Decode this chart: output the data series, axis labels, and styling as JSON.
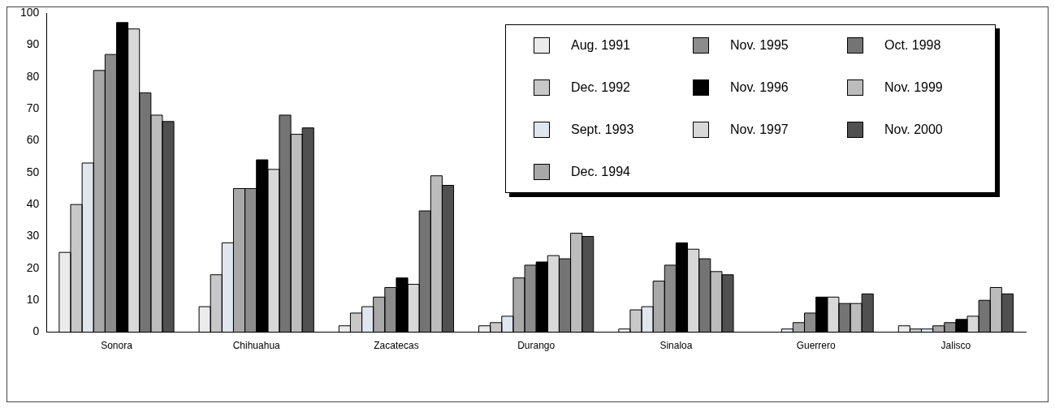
{
  "chart_data": {
    "type": "bar",
    "categories": [
      "Sonora",
      "Chihuahua",
      "Zacatecas",
      "Durango",
      "Sinaloa",
      "Guerrero",
      "Jalisco"
    ],
    "series": [
      {
        "name": "Aug. 1991",
        "color": "#ebebeb",
        "values": [
          25,
          8,
          2,
          2,
          1,
          null,
          2
        ]
      },
      {
        "name": "Dec. 1992",
        "color": "#c8c8c8",
        "values": [
          40,
          18,
          6,
          3,
          7,
          null,
          1
        ]
      },
      {
        "name": "Sept. 1993",
        "color": "#dfe6ee",
        "values": [
          53,
          28,
          8,
          5,
          8,
          1,
          1
        ]
      },
      {
        "name": "Dec. 1994",
        "color": "#a8a8a8",
        "values": [
          82,
          45,
          11,
          17,
          16,
          3,
          2
        ]
      },
      {
        "name": "Nov. 1995",
        "color": "#8c8c8c",
        "values": [
          87,
          45,
          14,
          21,
          21,
          6,
          3
        ]
      },
      {
        "name": "Nov. 1996",
        "color": "#000000",
        "values": [
          97,
          54,
          17,
          22,
          28,
          11,
          4
        ]
      },
      {
        "name": "Nov. 1997",
        "color": "#d8d8d8",
        "values": [
          95,
          51,
          15,
          24,
          26,
          11,
          5
        ]
      },
      {
        "name": "Oct. 1998",
        "color": "#747474",
        "values": [
          75,
          68,
          38,
          23,
          23,
          9,
          10
        ]
      },
      {
        "name": "Nov. 1999",
        "color": "#bcbcbc",
        "values": [
          68,
          62,
          49,
          31,
          19,
          9,
          14
        ]
      },
      {
        "name": "Nov. 2000",
        "color": "#505050",
        "values": [
          66,
          64,
          46,
          30,
          18,
          12,
          12
        ]
      }
    ],
    "ylim": [
      0,
      100
    ],
    "yticks": [
      0,
      10,
      20,
      30,
      40,
      50,
      60,
      70,
      80,
      90,
      100
    ],
    "grid": false,
    "legend": "top right"
  }
}
